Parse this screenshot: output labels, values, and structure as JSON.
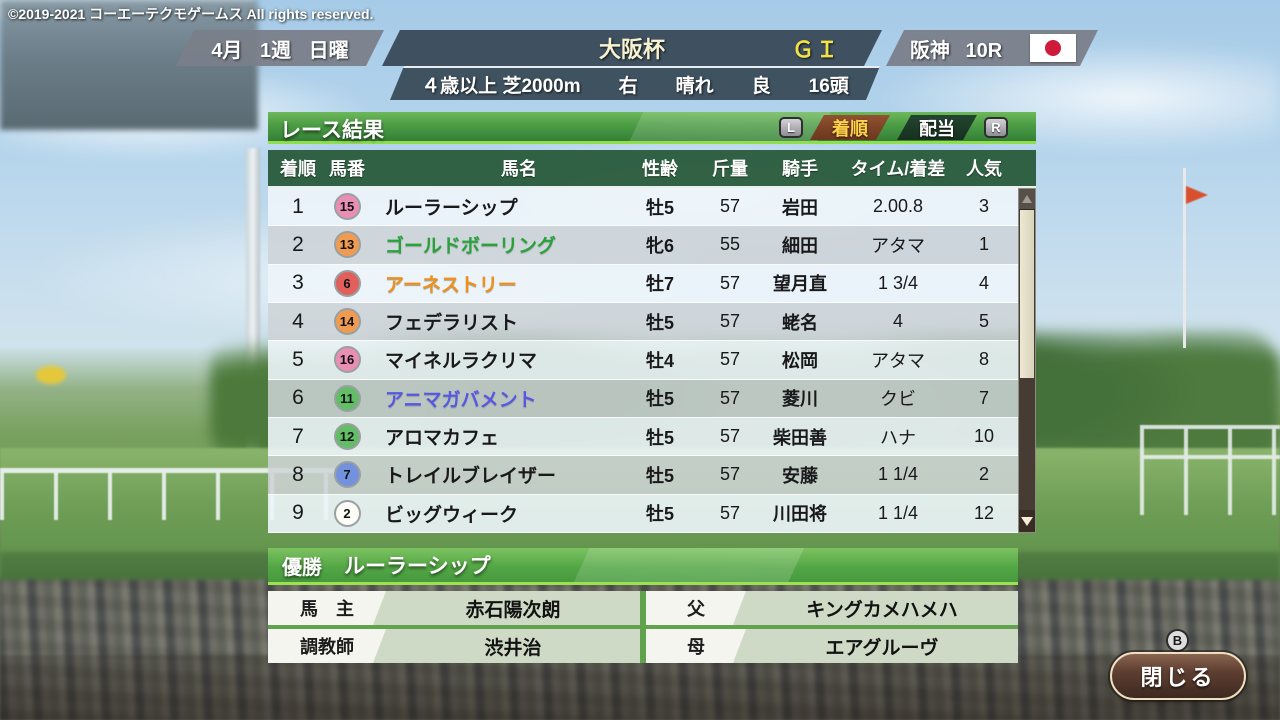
{
  "copyright": "©2019-2021 コーエーテクモゲームス All rights reserved.",
  "header": {
    "date": "4月 1週 日曜",
    "race_name": "大阪杯",
    "grade": "ＧＩ",
    "venue": "阪神 10R",
    "flag": "japan-flag",
    "conditions": {
      "class_course": "４歳以上 芝2000m",
      "direction": "右",
      "weather": "晴れ",
      "going": "良",
      "entries": "16頭"
    }
  },
  "panel": {
    "title": "レース結果",
    "left_bumper": "L",
    "right_bumper": "R",
    "tabs": [
      {
        "label": "着順",
        "active": true
      },
      {
        "label": "配当",
        "active": false
      }
    ]
  },
  "table": {
    "columns": [
      "着順",
      "馬番",
      "馬名",
      "性齢",
      "斤量",
      "騎手",
      "タイム/着差",
      "人気"
    ],
    "rows": [
      {
        "pos": "1",
        "num": "15",
        "frame": "pink",
        "name": "ルーラーシップ",
        "name_color": "black",
        "sex_age": "牡5",
        "weight": "57",
        "jockey": "岩田",
        "time": "2.00.8",
        "pop": "3"
      },
      {
        "pos": "2",
        "num": "13",
        "frame": "orange",
        "name": "ゴールドボーリング",
        "name_color": "green",
        "sex_age": "牝6",
        "weight": "55",
        "jockey": "細田",
        "time": "アタマ",
        "pop": "1"
      },
      {
        "pos": "3",
        "num": "6",
        "frame": "red",
        "name": "アーネストリー",
        "name_color": "orange",
        "sex_age": "牡7",
        "weight": "57",
        "jockey": "望月直",
        "time": "1 3/4",
        "pop": "4"
      },
      {
        "pos": "4",
        "num": "14",
        "frame": "orange",
        "name": "フェデラリスト",
        "name_color": "black",
        "sex_age": "牡5",
        "weight": "57",
        "jockey": "蛯名",
        "time": "4",
        "pop": "5"
      },
      {
        "pos": "5",
        "num": "16",
        "frame": "pink",
        "name": "マイネルラクリマ",
        "name_color": "black",
        "sex_age": "牡4",
        "weight": "57",
        "jockey": "松岡",
        "time": "アタマ",
        "pop": "8"
      },
      {
        "pos": "6",
        "num": "11",
        "frame": "green",
        "name": "アニマガバメント",
        "name_color": "blue",
        "sex_age": "牡5",
        "weight": "57",
        "jockey": "菱川",
        "time": "クビ",
        "pop": "7"
      },
      {
        "pos": "7",
        "num": "12",
        "frame": "green",
        "name": "アロマカフェ",
        "name_color": "black",
        "sex_age": "牡5",
        "weight": "57",
        "jockey": "柴田善",
        "time": "ハナ",
        "pop": "10"
      },
      {
        "pos": "8",
        "num": "7",
        "frame": "blue",
        "name": "トレイルブレイザー",
        "name_color": "black",
        "sex_age": "牡5",
        "weight": "57",
        "jockey": "安藤",
        "time": "1 1/4",
        "pop": "2"
      },
      {
        "pos": "9",
        "num": "2",
        "frame": "white",
        "name": "ビッグウィーク",
        "name_color": "black",
        "sex_age": "牡5",
        "weight": "57",
        "jockey": "川田将",
        "time": "1 1/4",
        "pop": "12"
      }
    ]
  },
  "winner": {
    "label": "優勝",
    "name": "ルーラーシップ",
    "details": [
      {
        "label": "馬　主",
        "value": "赤石陽次朗"
      },
      {
        "label": "父",
        "value": "キングカメハメハ"
      },
      {
        "label": "調教師",
        "value": "渋井治"
      },
      {
        "label": "母",
        "value": "エアグルーヴ"
      }
    ]
  },
  "footer": {
    "close_label": "閉じる",
    "button_hint": "B"
  },
  "colors": {
    "accent_green": "#4c9c45",
    "header_dark": "#384957",
    "tab_active_bg": "#7a4226",
    "tab_active_text": "#ffd24a",
    "grade_text": "#f2e24a",
    "frame_pink": "#e98fb4",
    "frame_orange": "#ef9b51",
    "frame_red": "#e2605c",
    "frame_green": "#62bd66",
    "frame_blue": "#7392de",
    "frame_white": "#fdfdf8",
    "name_green": "#2aa23a",
    "name_orange": "#f09018",
    "name_blue": "#5757e2"
  }
}
